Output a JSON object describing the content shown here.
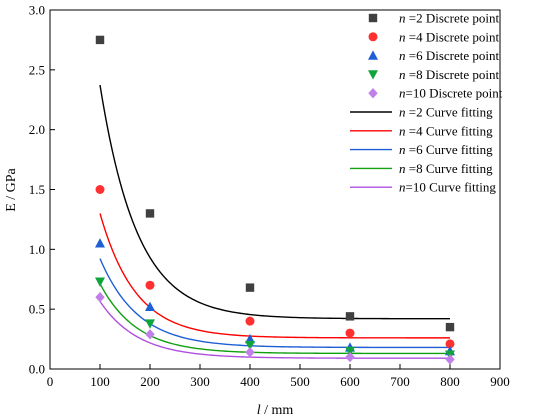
{
  "chart_data": {
    "type": "scatter",
    "title": "",
    "xlabel_var": "l",
    "xlabel_unit": " / mm",
    "ylabel": "E / GPa",
    "xlim": [
      0,
      900
    ],
    "ylim": [
      0,
      3.0
    ],
    "xticks": [
      0,
      100,
      200,
      300,
      400,
      500,
      600,
      700,
      800,
      900
    ],
    "yticks": [
      0.0,
      0.5,
      1.0,
      1.5,
      2.0,
      2.5,
      3.0
    ],
    "xtick_labels": [
      "0",
      "100",
      "200",
      "300",
      "400",
      "500",
      "600",
      "700",
      "800",
      "900"
    ],
    "ytick_labels": [
      "0.0",
      "0.5",
      "1.0",
      "1.5",
      "2.0",
      "2.5",
      "3.0"
    ],
    "grid": false,
    "legend_position": "top-right",
    "x": [
      100,
      200,
      400,
      600,
      800
    ],
    "series": [
      {
        "n_label": "n",
        "point_suffix": " =2 Discrete point",
        "curve_suffix": " =2 Curve fitting",
        "marker": "square",
        "marker_color": "#404040",
        "curve_color": "#000000",
        "values": [
          2.75,
          1.3,
          0.68,
          0.44,
          0.35
        ],
        "fit": {
          "a": 7.46,
          "b": 0.0134,
          "c": 0.42
        }
      },
      {
        "n_label": "n",
        "point_suffix": " =4 Discrete point",
        "curve_suffix": " =4 Curve fitting",
        "marker": "circle",
        "marker_color": "#ff3030",
        "curve_color": "#ff0000",
        "values": [
          1.5,
          0.7,
          0.4,
          0.3,
          0.21
        ],
        "fit": {
          "a": 4.26,
          "b": 0.0141,
          "c": 0.26
        }
      },
      {
        "n_label": "n",
        "point_suffix": " =6 Discrete point",
        "curve_suffix": " =6 Curve fitting",
        "marker": "triangle-up",
        "marker_color": "#1f5fd6",
        "curve_color": "#1f5fd6",
        "values": [
          1.05,
          0.52,
          0.25,
          0.18,
          0.15
        ],
        "fit": {
          "a": 2.78,
          "b": 0.0132,
          "c": 0.18
        }
      },
      {
        "n_label": "n",
        "point_suffix": " =8 Discrete point",
        "curve_suffix": " =8 Curve fitting",
        "marker": "triangle-down",
        "marker_color": "#10a43c",
        "curve_color": "#10a010",
        "values": [
          0.73,
          0.38,
          0.2,
          0.15,
          0.12
        ],
        "fit": {
          "a": 2.27,
          "b": 0.0136,
          "c": 0.13
        }
      },
      {
        "n_label": "n",
        "point_suffix": "=10 Discrete point",
        "curve_suffix": "=10 Curve fitting",
        "marker": "diamond",
        "marker_color": "#c080e8",
        "curve_color": "#b050e0",
        "values": [
          0.6,
          0.29,
          0.14,
          0.1,
          0.08
        ],
        "fit": {
          "a": 1.76,
          "b": 0.0131,
          "c": 0.09
        }
      }
    ]
  }
}
